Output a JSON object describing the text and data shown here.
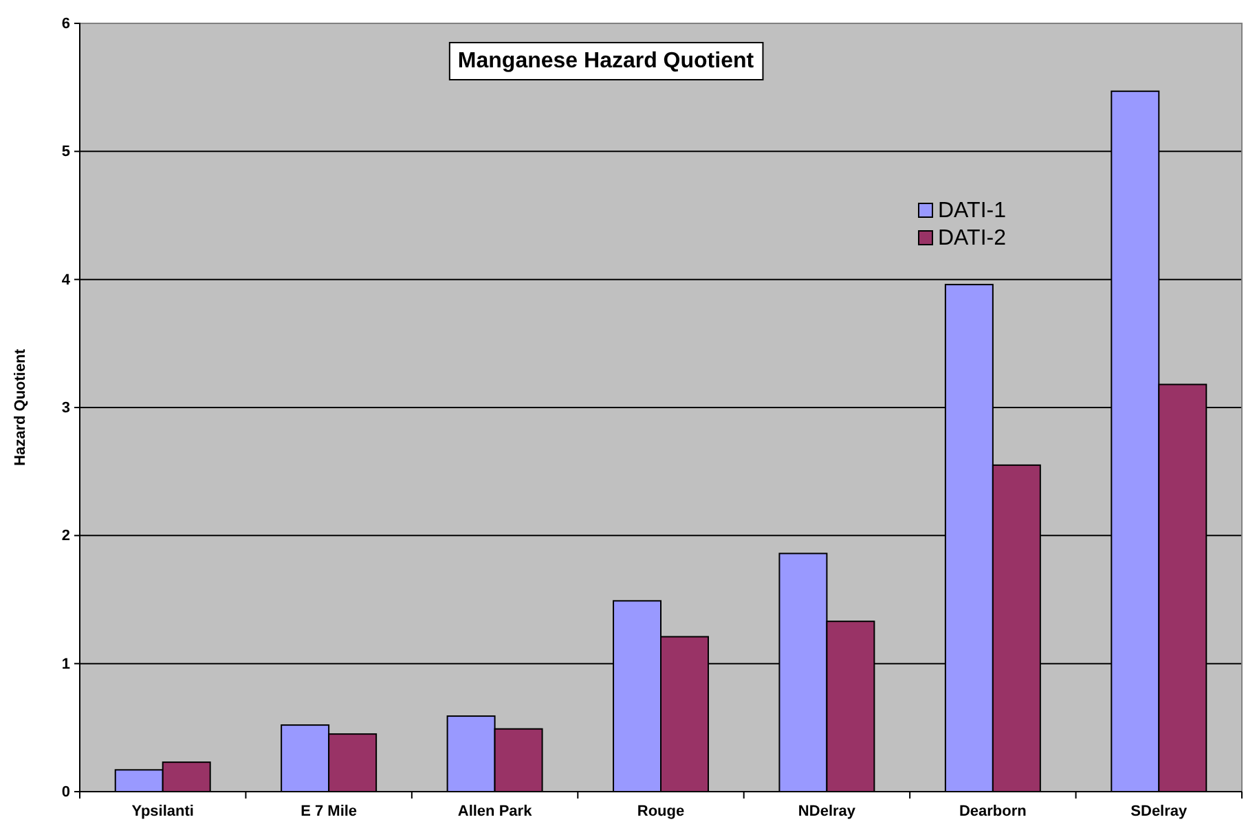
{
  "chart_data": {
    "type": "bar",
    "title": "Manganese Hazard Quotient",
    "ylabel": "Hazard Quotient",
    "categories": [
      "Ypsilanti",
      "E 7 Mile",
      "Allen Park",
      "Rouge",
      "NDelray",
      "Dearborn",
      "SDelray"
    ],
    "series": [
      {
        "name": "DATI-1",
        "color": "#9999ff",
        "values": [
          0.17,
          0.52,
          0.59,
          1.49,
          1.86,
          3.96,
          5.47
        ]
      },
      {
        "name": "DATI-2",
        "color": "#993366",
        "values": [
          0.23,
          0.45,
          0.49,
          1.21,
          1.33,
          2.55,
          3.18
        ]
      }
    ],
    "ylim": [
      0,
      6
    ],
    "yticks": [
      0,
      1,
      2,
      3,
      4,
      5,
      6
    ],
    "grid": "y",
    "legend": "top right"
  }
}
